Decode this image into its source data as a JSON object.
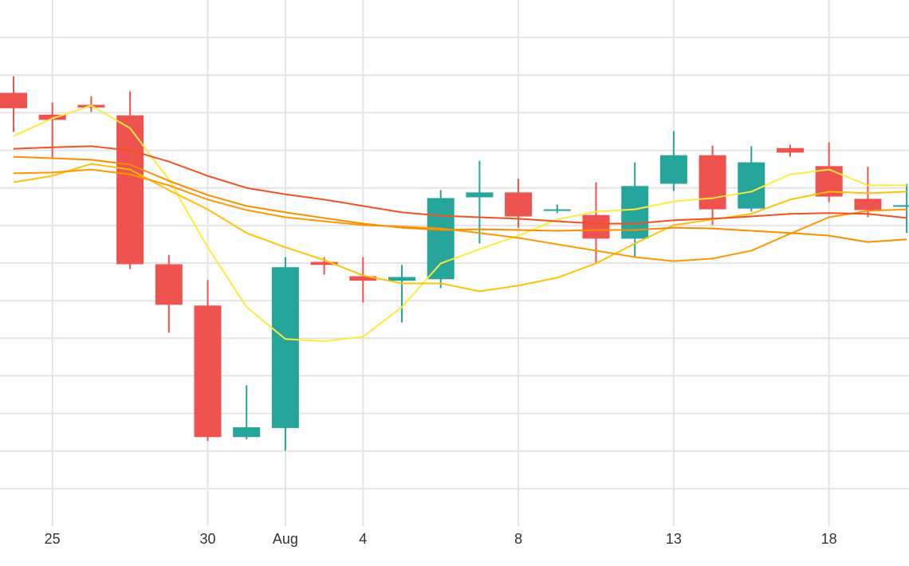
{
  "chart_data": {
    "type": "candlestick",
    "categories": [
      null,
      "25",
      null,
      null,
      null,
      "30",
      null,
      "Aug",
      null,
      "4",
      null,
      null,
      null,
      "8",
      null,
      null,
      null,
      "13",
      null,
      null,
      null,
      "18",
      null,
      null
    ],
    "open": [
      11.53,
      10.95,
      11.21,
      10.93,
      6.97,
      5.87,
      2.37,
      2.61,
      7.03,
      6.65,
      6.53,
      6.57,
      8.75,
      8.88,
      8.41,
      8.28,
      7.65,
      9.11,
      9.87,
      8.45,
      10.06,
      9.58,
      8.71,
      8.5
    ],
    "high": [
      11.97,
      11.27,
      11.44,
      11.57,
      7.22,
      6.55,
      3.75,
      7.16,
      7.16,
      7.16,
      6.95,
      8.94,
      9.72,
      9.24,
      8.56,
      9.15,
      9.68,
      10.51,
      10.13,
      10.11,
      10.15,
      10.21,
      9.56,
      9.11
    ],
    "low": [
      10.49,
      9.81,
      11.02,
      6.84,
      5.15,
      2.27,
      2.31,
      2.01,
      6.69,
      5.95,
      5.42,
      6.33,
      7.52,
      7.94,
      8.33,
      6.99,
      7.18,
      8.92,
      8.01,
      8.37,
      9.83,
      8.62,
      8.22,
      7.8
    ],
    "close": [
      11.12,
      10.81,
      11.14,
      6.97,
      5.89,
      2.37,
      2.63,
      6.89,
      6.95,
      6.53,
      6.63,
      8.73,
      8.88,
      8.24,
      8.43,
      7.65,
      9.05,
      9.87,
      8.43,
      9.68,
      9.94,
      8.77,
      8.41,
      8.54
    ],
    "up_color": "#26a69a",
    "down_color": "#ef5350",
    "series": [
      {
        "color": "#ffeb3b",
        "values": [
          10.38,
          10.85,
          11.19,
          10.59,
          9.22,
          7.42,
          5.83,
          4.98,
          4.92,
          5.04,
          5.83,
          6.99,
          7.37,
          7.73,
          8.16,
          8.37,
          8.43,
          8.64,
          8.73,
          8.9,
          9.36,
          9.49,
          9.07,
          9.07
        ]
      },
      {
        "color": "#ffc107",
        "values": [
          9.15,
          9.32,
          9.64,
          9.49,
          8.94,
          8.43,
          7.8,
          7.42,
          7.08,
          6.67,
          6.46,
          6.46,
          6.25,
          6.4,
          6.61,
          6.99,
          7.52,
          8.01,
          8.16,
          8.31,
          8.69,
          8.9,
          8.86,
          8.9
        ]
      },
      {
        "color": "#ff9800",
        "values": [
          9.39,
          9.41,
          9.49,
          9.36,
          9.07,
          8.69,
          8.41,
          8.22,
          8.11,
          8.01,
          7.97,
          7.92,
          7.8,
          7.67,
          7.5,
          7.33,
          7.16,
          7.05,
          7.12,
          7.33,
          7.78,
          8.22,
          8.39,
          8.43
        ]
      },
      {
        "color": "#fb8c00",
        "values": [
          9.83,
          9.79,
          9.75,
          9.62,
          9.19,
          8.81,
          8.52,
          8.35,
          8.2,
          8.05,
          7.94,
          7.88,
          7.9,
          7.88,
          7.86,
          7.88,
          7.88,
          7.94,
          7.92,
          7.86,
          7.8,
          7.73,
          7.56,
          7.63
        ]
      },
      {
        "color": "#f4511e",
        "values": [
          10.04,
          10.08,
          10.11,
          10.0,
          9.7,
          9.32,
          9.0,
          8.83,
          8.69,
          8.52,
          8.35,
          8.26,
          8.22,
          8.18,
          8.11,
          8.05,
          8.05,
          8.14,
          8.18,
          8.24,
          8.31,
          8.33,
          8.31,
          8.2
        ]
      }
    ],
    "ylim": [
      0,
      14
    ],
    "yticks": [
      1,
      2,
      3,
      4,
      5,
      6,
      7,
      8,
      9,
      10,
      11,
      12,
      13
    ],
    "grid": true
  }
}
